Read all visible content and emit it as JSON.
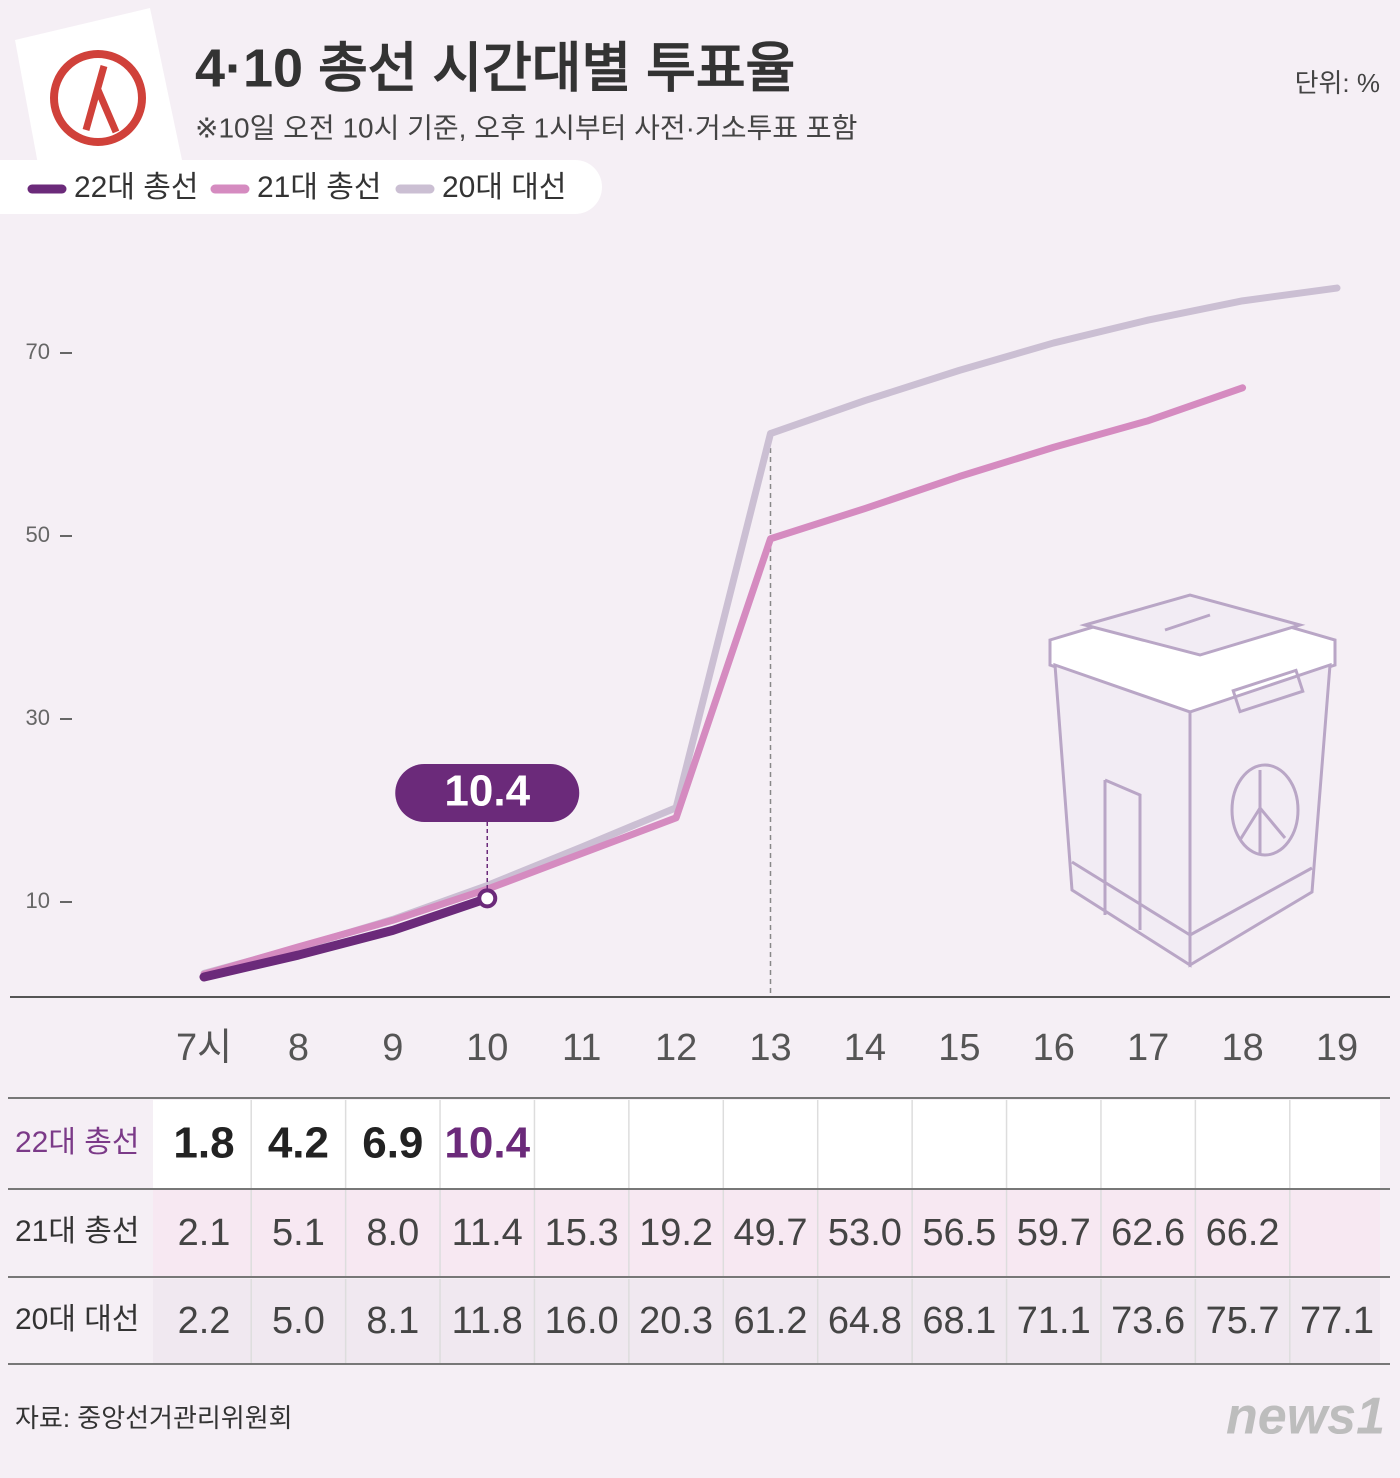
{
  "chart_data": {
    "type": "line",
    "title": "4·10 총선 시간대별 투표율",
    "subtitle": "※10일 오전 10시 기준, 오후 1시부터 사전·거소투표 포함",
    "unit_label": "단위: %",
    "source": "자료: 중앙선거관리위원회",
    "logo": "news1",
    "categories": [
      "7시",
      "8",
      "9",
      "10",
      "11",
      "12",
      "13",
      "14",
      "15",
      "16",
      "17",
      "18",
      "19"
    ],
    "ylim": [
      0,
      80
    ],
    "yticks": [
      10,
      30,
      50,
      70
    ],
    "series": [
      {
        "name": "22대 총선",
        "color": "#6b2a7a",
        "values": [
          1.8,
          4.2,
          6.9,
          10.4,
          null,
          null,
          null,
          null,
          null,
          null,
          null,
          null,
          null
        ],
        "value_labels": [
          "1.8",
          "4.2",
          "6.9",
          "10.4",
          null,
          null,
          null,
          null,
          null,
          null,
          null,
          null,
          null
        ]
      },
      {
        "name": "21대 총선",
        "color": "#d58bc0",
        "values": [
          2.1,
          5.1,
          8.0,
          11.4,
          15.3,
          19.2,
          49.7,
          53.0,
          56.5,
          59.7,
          62.6,
          66.2,
          null
        ],
        "value_labels": [
          "2.1",
          "5.1",
          "8.0",
          "11.4",
          "15.3",
          "19.2",
          "49.7",
          "53.0",
          "56.5",
          "59.7",
          "62.6",
          "66.2",
          null
        ]
      },
      {
        "name": "20대 대선",
        "color": "#cbbfd3",
        "values": [
          2.2,
          5.0,
          8.1,
          11.8,
          16.0,
          20.3,
          61.2,
          64.8,
          68.1,
          71.1,
          73.6,
          75.7,
          77.1
        ],
        "value_labels": [
          "2.2",
          "5.0",
          "8.1",
          "11.8",
          "16.0",
          "20.3",
          "61.2",
          "64.8",
          "68.1",
          "71.1",
          "73.6",
          "75.7",
          "77.1"
        ]
      }
    ]
  }
}
